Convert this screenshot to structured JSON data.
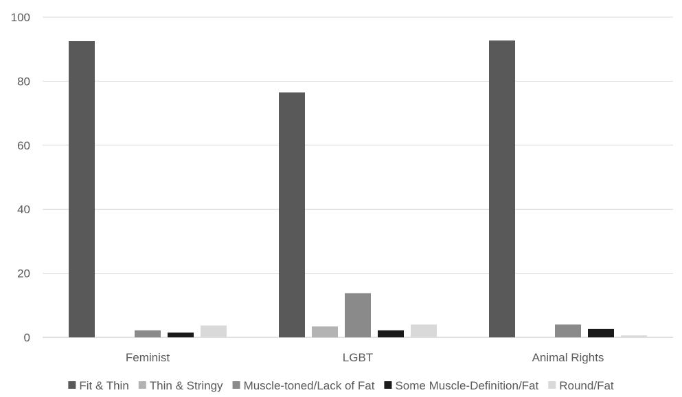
{
  "chart_data": {
    "type": "bar",
    "title": "",
    "xlabel": "",
    "ylabel": "",
    "categories": [
      "Feminist",
      "LGBT",
      "Animal Rights"
    ],
    "ylim": [
      0,
      100
    ],
    "yticks": [
      0,
      20,
      40,
      60,
      80,
      100
    ],
    "grid": true,
    "legend": "bottom",
    "series": [
      {
        "name": "Fit & Thin",
        "color": "#595959",
        "values": [
          92.5,
          76.5,
          92.7
        ]
      },
      {
        "name": "Thin & Stringy",
        "color": "#b3b3b3",
        "values": [
          0,
          3.4,
          0
        ]
      },
      {
        "name": "Muscle-toned/Lack of Fat",
        "color": "#8a8a8a",
        "values": [
          2.2,
          13.8,
          4.0
        ]
      },
      {
        "name": "Some Muscle-Definition/Fat",
        "color": "#1a1a1a",
        "values": [
          1.5,
          2.2,
          2.6
        ]
      },
      {
        "name": "Round/Fat",
        "color": "#d9d9d9",
        "values": [
          3.7,
          4.0,
          0.6
        ]
      }
    ]
  }
}
